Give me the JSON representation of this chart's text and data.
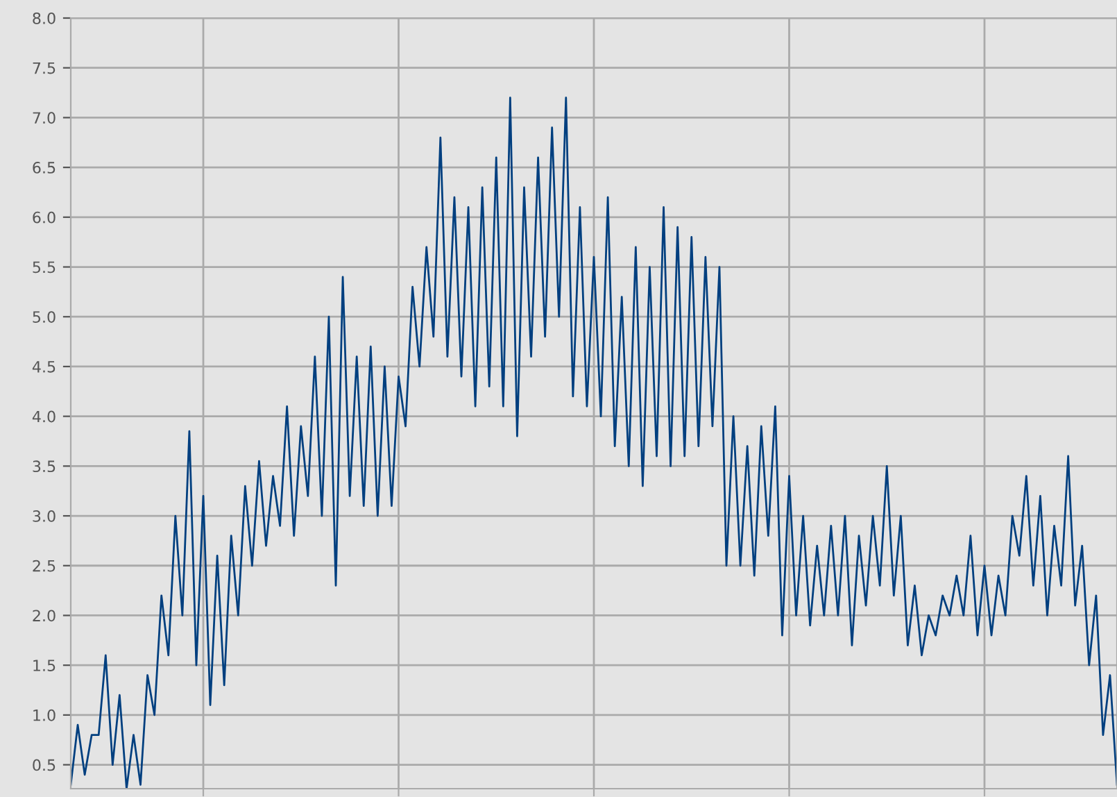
{
  "chart_data": {
    "type": "line",
    "categories": [
      null,
      null,
      null,
      null,
      null,
      null,
      null,
      null,
      null,
      null,
      null,
      null,
      null,
      null,
      null,
      null,
      null,
      null,
      null,
      null,
      null,
      null,
      null,
      null,
      null,
      null,
      null,
      null,
      null,
      null,
      null,
      null,
      null,
      null,
      null,
      null,
      null,
      null,
      null,
      null,
      null,
      null,
      null,
      null,
      null,
      null,
      null,
      null,
      null,
      null,
      null,
      null,
      null,
      null,
      null,
      null,
      null,
      null,
      null,
      null,
      null,
      null,
      null,
      null,
      null,
      null,
      null,
      null,
      null,
      null,
      null,
      null,
      null,
      null,
      null,
      null,
      null,
      null,
      null,
      null,
      null,
      null,
      null,
      null,
      null,
      null,
      null,
      null,
      null,
      null,
      null,
      null,
      null,
      null,
      null,
      null,
      null,
      null,
      null,
      null,
      null,
      null,
      null,
      null,
      null,
      null,
      null,
      null,
      null,
      null,
      null,
      null,
      null,
      null,
      null,
      null,
      null,
      null,
      null,
      null,
      null,
      null,
      null,
      null,
      null,
      null,
      null,
      null,
      null,
      null,
      null,
      null,
      null,
      null,
      null,
      null,
      null,
      null,
      null,
      null,
      null,
      null,
      null,
      null,
      null,
      null,
      null,
      null,
      null,
      null,
      null
    ],
    "values": [
      0.3,
      0.9,
      0.4,
      0.8,
      0.8,
      1.6,
      0.5,
      1.2,
      0.26,
      0.8,
      0.3,
      1.4,
      1.0,
      2.2,
      1.6,
      3.0,
      2.0,
      3.85,
      1.5,
      3.2,
      1.1,
      2.6,
      1.3,
      2.8,
      2.0,
      3.3,
      2.5,
      3.55,
      2.7,
      3.4,
      2.9,
      4.1,
      2.8,
      3.9,
      3.2,
      4.6,
      3.0,
      5.0,
      2.3,
      5.4,
      3.2,
      4.6,
      3.1,
      4.7,
      3.0,
      4.5,
      3.1,
      4.4,
      3.9,
      5.3,
      4.5,
      5.7,
      4.8,
      6.8,
      4.6,
      6.2,
      4.4,
      6.1,
      4.1,
      6.3,
      4.3,
      6.6,
      4.1,
      7.2,
      3.8,
      6.3,
      4.6,
      6.6,
      4.8,
      6.9,
      5.0,
      7.2,
      4.2,
      6.1,
      4.1,
      5.6,
      4.0,
      6.2,
      3.7,
      5.2,
      3.5,
      5.7,
      3.3,
      5.5,
      3.6,
      6.1,
      3.5,
      5.9,
      3.6,
      5.8,
      3.7,
      5.6,
      3.9,
      5.5,
      2.5,
      4.0,
      2.5,
      3.7,
      2.4,
      3.9,
      2.8,
      4.1,
      1.8,
      3.4,
      2.0,
      3.0,
      1.9,
      2.7,
      2.0,
      2.9,
      2.0,
      3.0,
      1.7,
      2.8,
      2.1,
      3.0,
      2.3,
      3.5,
      2.2,
      3.0,
      1.7,
      2.3,
      1.6,
      2.0,
      1.8,
      2.2,
      2.0,
      2.4,
      2.0,
      2.8,
      1.8,
      2.5,
      1.8,
      2.4,
      2.0,
      3.0,
      2.6,
      3.4,
      2.3,
      3.2,
      2.0,
      2.9,
      2.3,
      3.6,
      2.1,
      2.7,
      1.5,
      2.2,
      0.8,
      1.4,
      0.3
    ],
    "color": "#003f7f",
    "ylim": [
      0.26,
      8.0
    ],
    "yticks": [
      {
        "value": 0.5,
        "label": "0.5"
      },
      {
        "value": 1.0,
        "label": "1.0"
      },
      {
        "value": 1.5,
        "label": "1.5"
      },
      {
        "value": 2.0,
        "label": "2.0"
      },
      {
        "value": 2.5,
        "label": "2.5"
      },
      {
        "value": 3.0,
        "label": "3.0"
      },
      {
        "value": 3.5,
        "label": "3.5"
      },
      {
        "value": 4.0,
        "label": "4.0"
      },
      {
        "value": 4.5,
        "label": "4.5"
      },
      {
        "value": 5.0,
        "label": "5.0"
      },
      {
        "value": 5.5,
        "label": "5.5"
      },
      {
        "value": 6.0,
        "label": "6.0"
      },
      {
        "value": 6.5,
        "label": "6.5"
      },
      {
        "value": 7.0,
        "label": "7.0"
      },
      {
        "value": 7.5,
        "label": "7.5"
      },
      {
        "value": 8.0,
        "label": "8.0"
      }
    ],
    "grid": true,
    "legend": false
  }
}
